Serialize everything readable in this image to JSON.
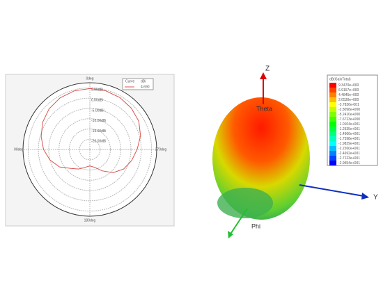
{
  "chart_data": {
    "type": "polar",
    "theta": [
      0,
      15,
      30,
      45,
      60,
      75,
      90,
      105,
      120,
      135,
      150,
      165,
      180,
      195,
      210,
      225,
      240,
      255,
      270,
      285,
      300,
      315,
      330,
      345
    ],
    "series": [
      {
        "color": "#d9534f",
        "values": [
          4.7,
          4.5,
          4,
          3,
          1.5,
          -0.5,
          -2.5,
          -5,
          -8,
          -12,
          -14,
          -16,
          -17,
          -16,
          -13,
          -9,
          -6,
          -4,
          -2,
          0.5,
          2.5,
          3.5,
          4.2,
          4.6
        ]
      }
    ],
    "rlim": [
      -25,
      7.5
    ],
    "rticks": [
      {
        "value": -20,
        "label": "-20.00dBi"
      },
      {
        "value": -15,
        "label": "-15.00dBi"
      },
      {
        "value": -10,
        "label": "-10.00dBi"
      },
      {
        "value": -5,
        "label": "-5.00dBi"
      },
      {
        "value": 0,
        "label": "0.00dBi"
      },
      {
        "value": 5,
        "label": "5.00dBi"
      }
    ],
    "thetaticks": [
      {
        "value": 0,
        "label": "0deg"
      },
      {
        "value": 90,
        "label": "90deg"
      },
      {
        "value": 180,
        "label": "180deg"
      },
      {
        "value": 270,
        "label": "270deg"
      }
    ],
    "legend_header": [
      "Curve",
      "dBi"
    ],
    "legend_value": "4.690"
  },
  "pattern_3d": {
    "axes": {
      "z": "Z",
      "theta": "Theta",
      "y": "Y",
      "phi": "Phi"
    },
    "legend_title": "dB(GainTotal)",
    "legend": [
      {
        "label": "9.3470e+000",
        "color": "#ff0000"
      },
      {
        "label": "6.9157e+000",
        "color": "#ff4000"
      },
      {
        "label": "4.4845e+000",
        "color": "#ff8000"
      },
      {
        "label": "2.0530e+000",
        "color": "#ffbf00"
      },
      {
        "label": "-3.7836e-001",
        "color": "#ffff00"
      },
      {
        "label": "-2.8098e+000",
        "color": "#bfff00"
      },
      {
        "label": "-5.2410e+000",
        "color": "#80ff00"
      },
      {
        "label": "-7.6723e+000",
        "color": "#40ff00"
      },
      {
        "label": "-1.0104e+001",
        "color": "#00ff00"
      },
      {
        "label": "-1.2535e+001",
        "color": "#00ff40"
      },
      {
        "label": "-1.4966e+001",
        "color": "#00ff80"
      },
      {
        "label": "-1.7398e+001",
        "color": "#00ffbf"
      },
      {
        "label": "-1.9829e+001",
        "color": "#00ffff"
      },
      {
        "label": "-2.2260e+001",
        "color": "#00bfff"
      },
      {
        "label": "-2.4692e+001",
        "color": "#0080ff"
      },
      {
        "label": "-2.7123e+001",
        "color": "#0040ff"
      },
      {
        "label": "-2.9554e+001",
        "color": "#0000ff"
      }
    ]
  }
}
